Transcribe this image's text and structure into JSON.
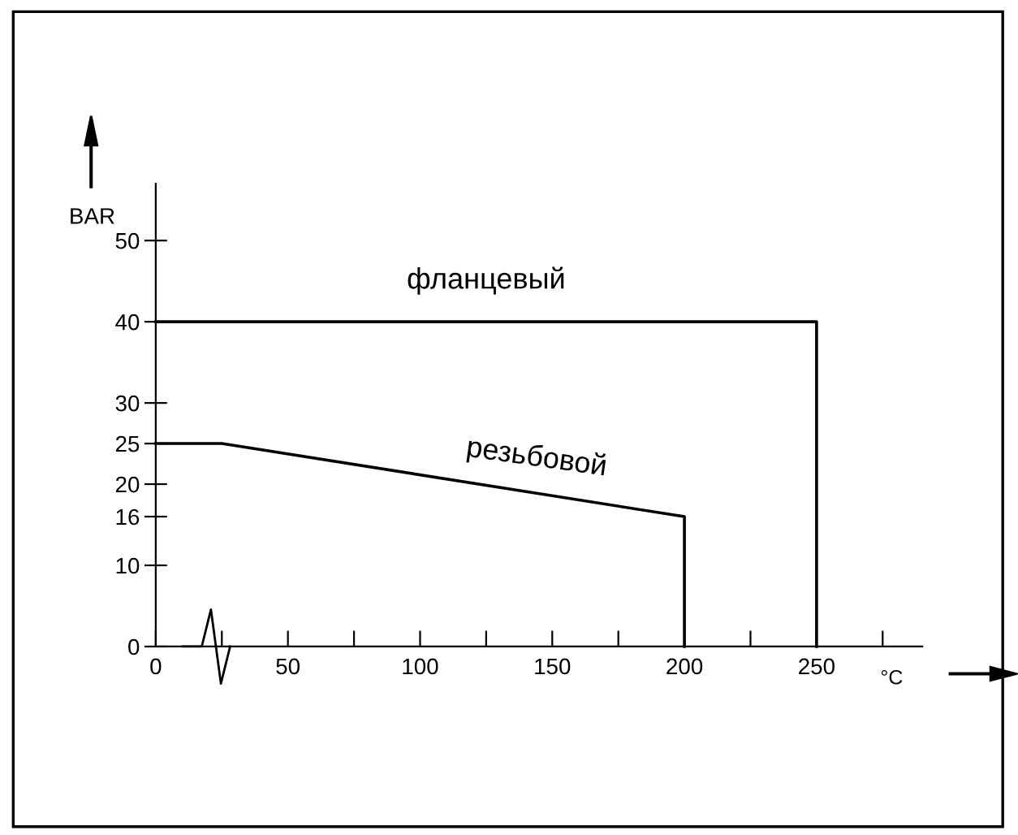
{
  "chart_data": {
    "type": "line",
    "xlabel": "°C",
    "ylabel": "BAR",
    "series": [
      {
        "name": "фланцевый",
        "color": "#000000",
        "x": [
          0,
          250,
          250
        ],
        "values": [
          40,
          40,
          0
        ]
      },
      {
        "name": "резьбовой",
        "color": "#000000",
        "x": [
          0,
          25,
          200,
          200
        ],
        "values": [
          25,
          25,
          16,
          0
        ]
      }
    ],
    "xlim": [
      0,
      290
    ],
    "ylim": [
      0,
      57
    ],
    "xticks": [
      0,
      {
        "value": 25,
        "label": null
      },
      50,
      {
        "value": 75,
        "label": null
      },
      100,
      {
        "value": 125,
        "label": null
      },
      150,
      {
        "value": 175,
        "label": null
      },
      200,
      {
        "value": 225,
        "label": null
      },
      250,
      {
        "value": 275,
        "label": null
      }
    ],
    "yticks": [
      0,
      10,
      16,
      20,
      25,
      30,
      40,
      50
    ],
    "grid": false,
    "legend": false,
    "marker": "none",
    "line_style": "solid"
  }
}
